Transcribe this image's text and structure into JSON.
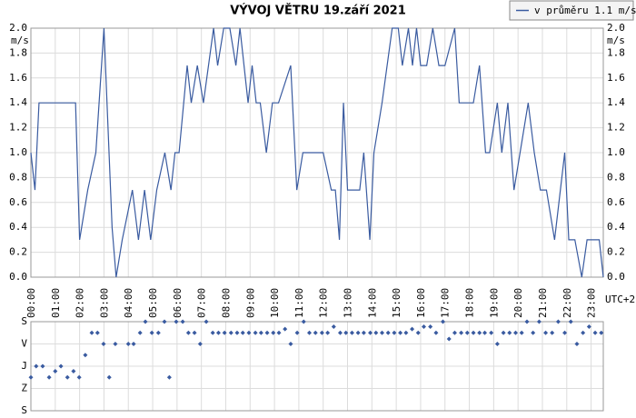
{
  "chart_data": [
    {
      "type": "line",
      "title": "VÝVOJ VĚTRU  19.září 2021",
      "y_label": "m/s",
      "x_label": "UTC+2",
      "x": [
        0,
        10,
        20,
        30,
        60,
        90,
        110,
        120,
        140,
        160,
        180,
        200,
        210,
        225,
        250,
        265,
        280,
        295,
        310,
        330,
        345,
        355,
        365,
        385,
        395,
        410,
        425,
        450,
        460,
        475,
        490,
        505,
        515,
        535,
        545,
        555,
        565,
        580,
        595,
        610,
        640,
        655,
        670,
        700,
        720,
        740,
        750,
        760,
        770,
        780,
        790,
        810,
        820,
        835,
        845,
        865,
        890,
        905,
        915,
        930,
        940,
        950,
        960,
        975,
        990,
        1005,
        1020,
        1044,
        1055,
        1075,
        1090,
        1105,
        1120,
        1130,
        1149,
        1160,
        1175,
        1190,
        1205,
        1225,
        1240,
        1255,
        1270,
        1290,
        1315,
        1325,
        1340,
        1357,
        1370,
        1385,
        1400,
        1410
      ],
      "series": [
        {
          "name": "v průměru 1.1 m/s",
          "color": "#3a5ba0",
          "values": [
            1.0,
            0.7,
            1.4,
            1.4,
            1.4,
            1.4,
            1.4,
            0.3,
            0.7,
            1.0,
            2.0,
            0.4,
            0.0,
            0.3,
            0.7,
            0.3,
            0.7,
            0.3,
            0.7,
            1.0,
            0.7,
            1.0,
            1.0,
            1.7,
            1.4,
            1.7,
            1.4,
            2.0,
            1.7,
            2.0,
            2.0,
            1.7,
            2.0,
            1.4,
            1.7,
            1.4,
            1.4,
            1.0,
            1.4,
            1.4,
            1.7,
            0.7,
            1.0,
            1.0,
            1.0,
            0.7,
            0.7,
            0.3,
            1.4,
            0.7,
            0.7,
            0.7,
            1.0,
            0.3,
            1.0,
            1.4,
            2.0,
            2.0,
            1.7,
            2.0,
            1.7,
            2.0,
            1.7,
            1.7,
            2.0,
            1.7,
            1.7,
            2.0,
            1.4,
            1.4,
            1.4,
            1.7,
            1.0,
            1.0,
            1.4,
            1.0,
            1.4,
            0.7,
            1.0,
            1.4,
            1.0,
            0.7,
            0.7,
            0.3,
            1.0,
            0.3,
            0.3,
            0.0,
            0.3,
            0.3,
            0.3,
            0.0
          ]
        }
      ],
      "xlim": [
        0,
        1410
      ],
      "xticks": [
        {
          "value": 0,
          "label": "00:00"
        },
        {
          "value": 60,
          "label": "01:00"
        },
        {
          "value": 120,
          "label": "02:00"
        },
        {
          "value": 180,
          "label": "03:00"
        },
        {
          "value": 240,
          "label": "04:00"
        },
        {
          "value": 300,
          "label": "05:00"
        },
        {
          "value": 360,
          "label": "06:00"
        },
        {
          "value": 420,
          "label": "07:00"
        },
        {
          "value": 480,
          "label": "08:00"
        },
        {
          "value": 540,
          "label": "09:00"
        },
        {
          "value": 600,
          "label": "10:00"
        },
        {
          "value": 660,
          "label": "11:00"
        },
        {
          "value": 720,
          "label": "12:00"
        },
        {
          "value": 780,
          "label": "13:00"
        },
        {
          "value": 840,
          "label": "14:00"
        },
        {
          "value": 900,
          "label": "15:00"
        },
        {
          "value": 960,
          "label": "16:00"
        },
        {
          "value": 1020,
          "label": "17:00"
        },
        {
          "value": 1080,
          "label": "18:00"
        },
        {
          "value": 1140,
          "label": "19:00"
        },
        {
          "value": 1200,
          "label": "20:00"
        },
        {
          "value": 1260,
          "label": "21:00"
        },
        {
          "value": 1320,
          "label": "22:00"
        },
        {
          "value": 1380,
          "label": "23:00"
        }
      ],
      "ylim": [
        0,
        2
      ],
      "yticks": [
        {
          "value": 0,
          "label": "0.0"
        },
        0.2,
        0.4,
        0.6,
        0.8,
        {
          "value": 1,
          "label": "1.0"
        },
        1.2,
        1.4,
        1.6,
        1.8,
        {
          "value": 2,
          "label": "2.0"
        }
      ],
      "grid": true,
      "legend": "top-right"
    },
    {
      "type": "scatter",
      "color": "#3a5ba0",
      "x": [
        0,
        13,
        29,
        45,
        60,
        74,
        90,
        105,
        119,
        134,
        150,
        164,
        179,
        193,
        208,
        240,
        253,
        269,
        282,
        298,
        314,
        329,
        341,
        358,
        374,
        388,
        403,
        417,
        432,
        448,
        462,
        477,
        493,
        508,
        522,
        537,
        553,
        567,
        582,
        597,
        611,
        626,
        640,
        656,
        672,
        686,
        701,
        717,
        731,
        746,
        762,
        776,
        791,
        806,
        820,
        836,
        850,
        865,
        880,
        895,
        910,
        924,
        939,
        954,
        968,
        984,
        998,
        1015,
        1030,
        1044,
        1060,
        1075,
        1090,
        1105,
        1118,
        1134,
        1149,
        1164,
        1179,
        1194,
        1209,
        1222,
        1237,
        1252,
        1268,
        1284,
        1299,
        1315,
        1330,
        1345,
        1360,
        1375,
        1390,
        1405
      ],
      "values": [
        225,
        180,
        180,
        225,
        200,
        180,
        225,
        200,
        225,
        135,
        45,
        45,
        90,
        225,
        90,
        90,
        90,
        45,
        0,
        45,
        45,
        0,
        225,
        0,
        0,
        45,
        45,
        90,
        0,
        45,
        45,
        45,
        45,
        45,
        45,
        45,
        45,
        45,
        45,
        45,
        45,
        30,
        90,
        45,
        0,
        45,
        45,
        45,
        45,
        20,
        45,
        45,
        45,
        45,
        45,
        45,
        45,
        45,
        45,
        45,
        45,
        45,
        30,
        45,
        20,
        20,
        45,
        0,
        70,
        45,
        45,
        45,
        45,
        45,
        45,
        45,
        90,
        45,
        45,
        45,
        45,
        0,
        45,
        0,
        45,
        45,
        0,
        45,
        0,
        90,
        45,
        20,
        45,
        45
      ],
      "xlim": [
        0,
        1410
      ],
      "xticks": [
        0,
        60,
        120,
        180,
        240,
        300,
        360,
        420,
        480,
        540,
        600,
        660,
        720,
        780,
        840,
        900,
        960,
        1020,
        1080,
        1140,
        1200,
        1260,
        1320,
        1380
      ],
      "ylim": [
        0,
        360
      ],
      "y_inverted": true,
      "yticks": [
        {
          "value": 0,
          "label": "S"
        },
        {
          "value": 90,
          "label": "V"
        },
        {
          "value": 180,
          "label": "J"
        },
        {
          "value": 270,
          "label": "Z"
        },
        {
          "value": 360,
          "label": "S"
        }
      ],
      "grid": true
    }
  ]
}
